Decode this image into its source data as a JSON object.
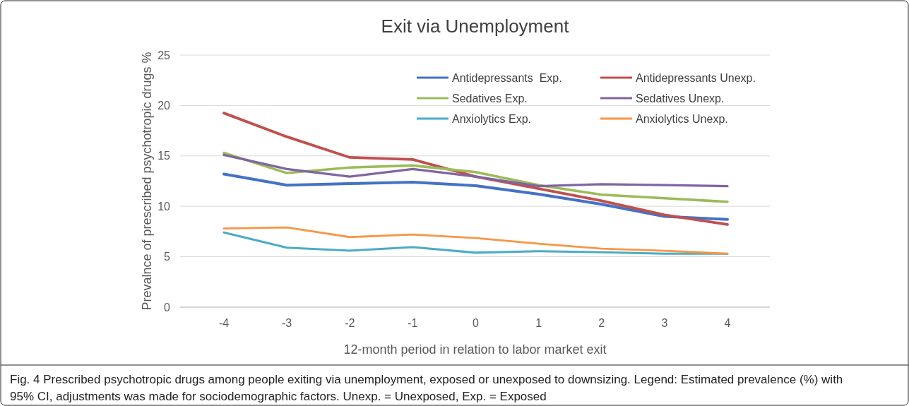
{
  "chart_data": {
    "type": "line",
    "title": "Exit via Unemployment",
    "xlabel": "12-month period in relation to labor market exit",
    "ylabel": "Prevalnce of prescribed psychotropic drugs %",
    "categories": [
      "-4",
      "-3",
      "-2",
      "-1",
      "0",
      "1",
      "2",
      "3",
      "4"
    ],
    "series": [
      {
        "name": "Antidepressants  Exp.",
        "color": "#4472c4",
        "values": [
          13.2,
          12.1,
          12.25,
          12.4,
          12.05,
          11.2,
          10.2,
          9.0,
          8.7
        ]
      },
      {
        "name": "Antidepressants Unexp.",
        "color": "#c0504d",
        "values": [
          19.25,
          16.9,
          14.85,
          14.65,
          12.95,
          11.75,
          10.55,
          9.15,
          8.2
        ]
      },
      {
        "name": "Sedatives Exp.",
        "color": "#9bbb59",
        "values": [
          15.3,
          13.3,
          13.85,
          14.05,
          13.4,
          12.1,
          11.15,
          10.8,
          10.45
        ]
      },
      {
        "name": "Sedatives Unexp.",
        "color": "#8064a2",
        "values": [
          15.1,
          13.7,
          12.95,
          13.7,
          12.95,
          12.0,
          12.2,
          12.1,
          12.0
        ]
      },
      {
        "name": "Anxiolytics Exp.",
        "color": "#4bacc6",
        "values": [
          7.4,
          5.9,
          5.6,
          5.95,
          5.4,
          5.55,
          5.45,
          5.3,
          5.3
        ]
      },
      {
        "name": "Anxiolytics Unexp.",
        "color": "#f79646",
        "values": [
          7.8,
          7.9,
          6.95,
          7.2,
          6.85,
          6.3,
          5.8,
          5.6,
          5.3
        ]
      }
    ],
    "ylim": [
      0,
      25
    ],
    "yticks": [
      0,
      5,
      10,
      15,
      20,
      25
    ],
    "grid": "y",
    "legend": "top right",
    "marker": "none",
    "line_style": "solid",
    "annotations": [
      "Fig. 4 Prescribed psychotropic drugs among people exiting via unemployment, exposed or unexposed to downsizing. Legend: Estimated prevalence (%) with 95% CI, adjustments was made for sociodemographic factors. Unexp. = Unexposed, Exp. = Exposed"
    ]
  }
}
